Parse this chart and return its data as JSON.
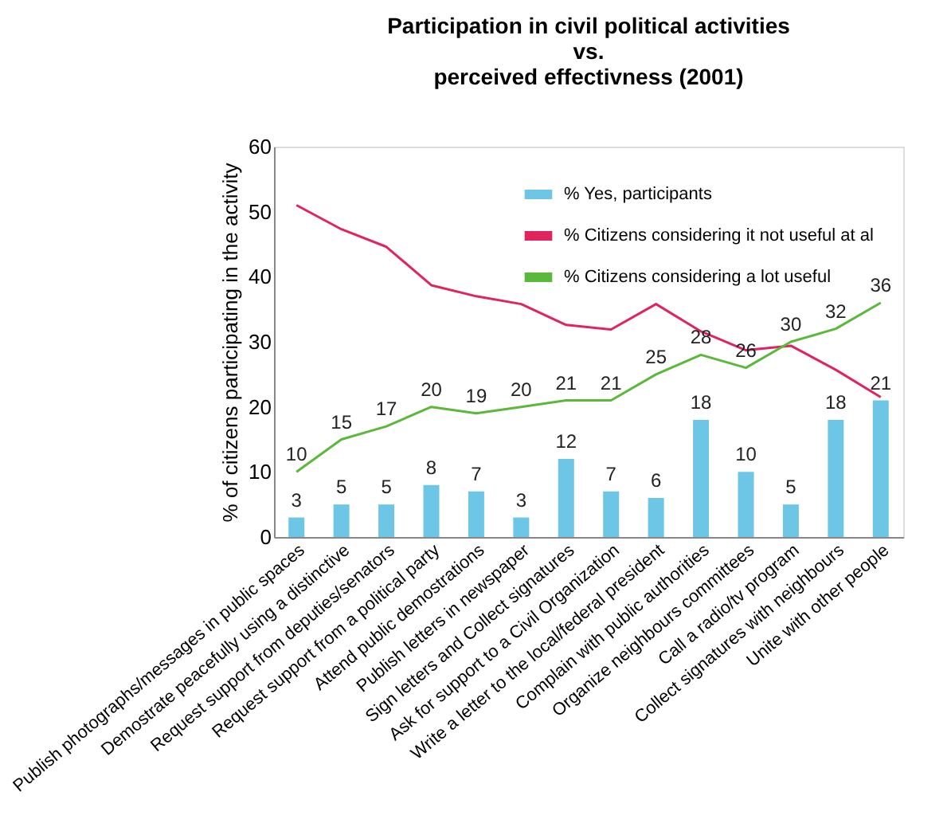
{
  "chart_data": {
    "type": "bar",
    "title": "Participation in civil political activities\nvs.\nperceived effectivness (2001)",
    "ylabel": "% of citizens participating in the activity",
    "categories": [
      "Publish photographs/messages in public spaces",
      "Demostrate peacefully using a distinctive",
      "Request support from deputies/senators",
      "Request support from a political party",
      "Attend public demostrations",
      "Publish letters in newspaper",
      "Sign letters and Collect signatures",
      "Ask for support to a Civil Organization",
      "Write a letter to the local/federal president",
      "Complain with public authorities",
      "Organize neighbours committees",
      "Call a radio/tv program",
      "Collect signatures with neighbours",
      "Unite with other people"
    ],
    "series": [
      {
        "name": "% Yes, participants",
        "color": "#6ec6e6",
        "values": [
          3,
          5,
          5,
          8,
          7,
          3,
          12,
          7,
          6,
          18,
          10,
          5,
          18,
          21
        ],
        "value_labels": [
          "3",
          "5",
          "5",
          "8",
          "7",
          "3",
          "12",
          "7",
          "6",
          "18",
          "10",
          "5",
          "18",
          "21"
        ]
      },
      {
        "name": "% Citizens considering it not useful at al",
        "type": "line",
        "color": "#e0245e",
        "values": [
          51,
          47.3,
          44.6,
          38.7,
          37,
          35.8,
          32.6,
          31.9,
          35.8,
          31.6,
          28.7,
          29.4,
          25.7,
          21.5
        ]
      },
      {
        "name": "% Citizens considering a lot useful",
        "type": "line",
        "color": "#5cb83a",
        "values": [
          10,
          15,
          17,
          20,
          19,
          20,
          21,
          21,
          25,
          28,
          26,
          30,
          32,
          36
        ],
        "value_labels": [
          "10",
          "15",
          "17",
          "20",
          "19",
          "20",
          "21",
          "21",
          "25",
          "28",
          "26",
          "30",
          "32",
          "36"
        ]
      }
    ],
    "ylim": [
      0,
      60
    ],
    "yticks": [
      0,
      10,
      20,
      30,
      40,
      50,
      60
    ],
    "grid": false,
    "legend": "top right"
  }
}
